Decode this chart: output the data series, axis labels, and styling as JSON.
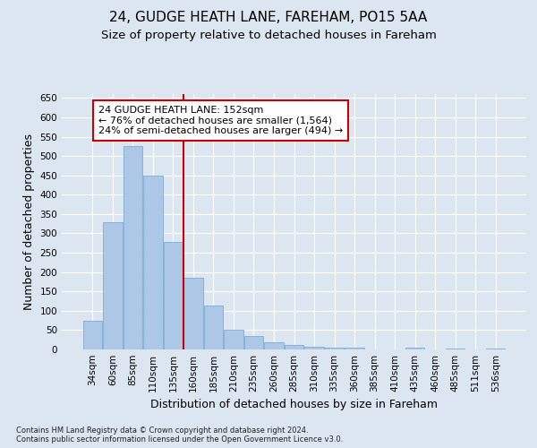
{
  "title_line1": "24, GUDGE HEATH LANE, FAREHAM, PO15 5AA",
  "title_line2": "Size of property relative to detached houses in Fareham",
  "xlabel": "Distribution of detached houses by size in Fareham",
  "ylabel": "Number of detached properties",
  "footnote": "Contains HM Land Registry data © Crown copyright and database right 2024.\nContains public sector information licensed under the Open Government Licence v3.0.",
  "categories": [
    "34sqm",
    "60sqm",
    "85sqm",
    "110sqm",
    "135sqm",
    "160sqm",
    "185sqm",
    "210sqm",
    "235sqm",
    "260sqm",
    "285sqm",
    "310sqm",
    "335sqm",
    "360sqm",
    "385sqm",
    "410sqm",
    "435sqm",
    "460sqm",
    "485sqm",
    "511sqm",
    "536sqm"
  ],
  "values": [
    73,
    330,
    525,
    450,
    278,
    185,
    113,
    50,
    35,
    18,
    12,
    8,
    5,
    4,
    1,
    0,
    5,
    0,
    3,
    0,
    3
  ],
  "bar_color": "#adc8e6",
  "bar_edge_color": "#7aadd4",
  "vline_color": "#cc0000",
  "vline_x": 5,
  "annotation_text": "24 GUDGE HEATH LANE: 152sqm\n← 76% of detached houses are smaller (1,564)\n24% of semi-detached houses are larger (494) →",
  "annotation_box_color": "#ffffff",
  "annotation_box_edge": "#cc0000",
  "ylim": [
    0,
    660
  ],
  "yticks": [
    0,
    50,
    100,
    150,
    200,
    250,
    300,
    350,
    400,
    450,
    500,
    550,
    600,
    650
  ],
  "bg_color": "#dce6f0",
  "plot_bg_color": "#dce6f0",
  "title_fontsize": 11,
  "subtitle_fontsize": 9.5,
  "tick_fontsize": 7.5,
  "label_fontsize": 9,
  "footnote_fontsize": 6
}
